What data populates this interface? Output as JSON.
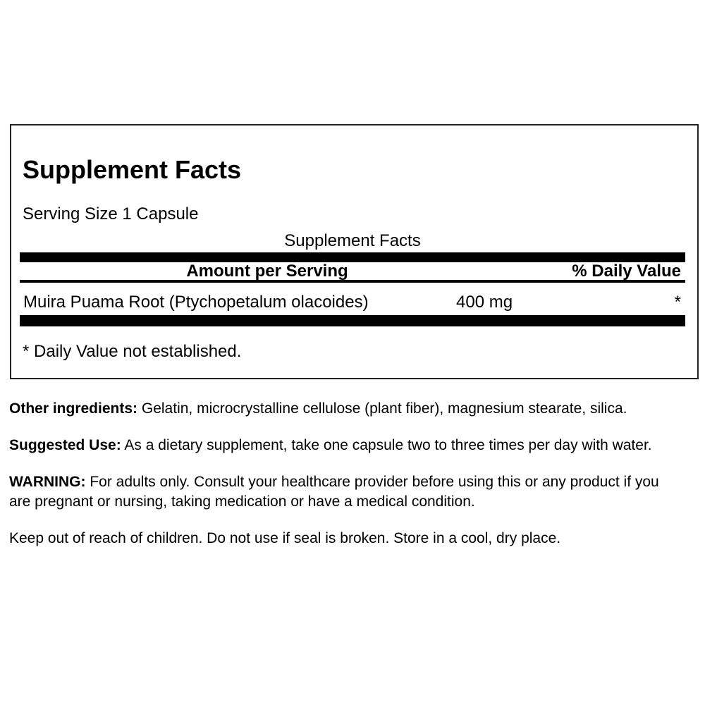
{
  "facts": {
    "title": "Supplement Facts",
    "serving_size": "Serving Size 1 Capsule",
    "table": {
      "caption": "Supplement Facts",
      "col_amount_header": "Amount per Serving",
      "col_dv_header": "% Daily Value",
      "rows": [
        {
          "name": "Muira Puama Root (Ptychopetalum olacoides)",
          "amount": "400 mg",
          "daily_value": "*"
        }
      ],
      "footnote": "* Daily Value not established."
    }
  },
  "paragraphs": {
    "other_ingredients": {
      "label": "Other ingredients:",
      "text": "Gelatin, microcrystalline cellulose (plant fiber), magnesium stearate, silica."
    },
    "suggested_use": {
      "label": "Suggested Use:",
      "text": "As a dietary supplement, take one capsule two to three times per day with water."
    },
    "warning": {
      "label": "WARNING:",
      "text": "For adults only. Consult your healthcare provider before using this or any product if you are pregnant or nursing, taking medication or have a medical condition."
    },
    "storage": "Keep out of reach of children. Do not use if seal is broken. Store in a cool, dry place."
  },
  "colors": {
    "text": "#000000",
    "bars": "#000000",
    "panel_border": "#222222",
    "background": "#ffffff"
  }
}
